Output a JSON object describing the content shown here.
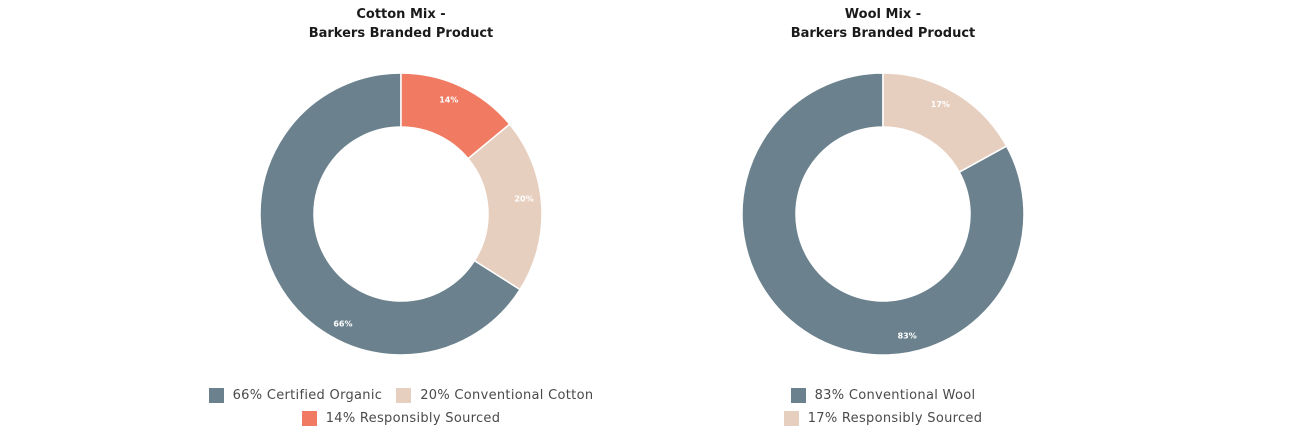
{
  "colors": {
    "slate": "#6b828e",
    "beige": "#e7cfbf",
    "coral": "#f07b62"
  },
  "chart_data": [
    {
      "type": "donut",
      "title": [
        "Cotton Mix -",
        "Barkers Branded Product"
      ],
      "series": [
        {
          "name": "Certified Organic",
          "value": 66,
          "label": "66%",
          "legend": "66% Certified Organic",
          "color": "#6b828e"
        },
        {
          "name": "Conventional Cotton",
          "value": 20,
          "label": "20%",
          "legend": "20% Conventional Cotton",
          "color": "#e7cfbf"
        },
        {
          "name": "Responsibly Sourced",
          "value": 14,
          "label": "14%",
          "legend": "14% Responsibly Sourced",
          "color": "#f07b62"
        }
      ],
      "legend_rows": [
        [
          0,
          1
        ],
        [
          2
        ]
      ],
      "legend_position": "bottom"
    },
    {
      "type": "donut",
      "title": [
        "Wool Mix -",
        "Barkers Branded Product"
      ],
      "series": [
        {
          "name": "Conventional Wool",
          "value": 83,
          "label": "83%",
          "legend": "83% Conventional Wool",
          "color": "#6b828e"
        },
        {
          "name": "Responsibly Sourced",
          "value": 17,
          "label": "17%",
          "legend": "17% Responsibly Sourced",
          "color": "#e7cfbf"
        }
      ],
      "legend_rows": [
        [
          0
        ],
        [
          1
        ]
      ],
      "legend_position": "bottom"
    }
  ]
}
